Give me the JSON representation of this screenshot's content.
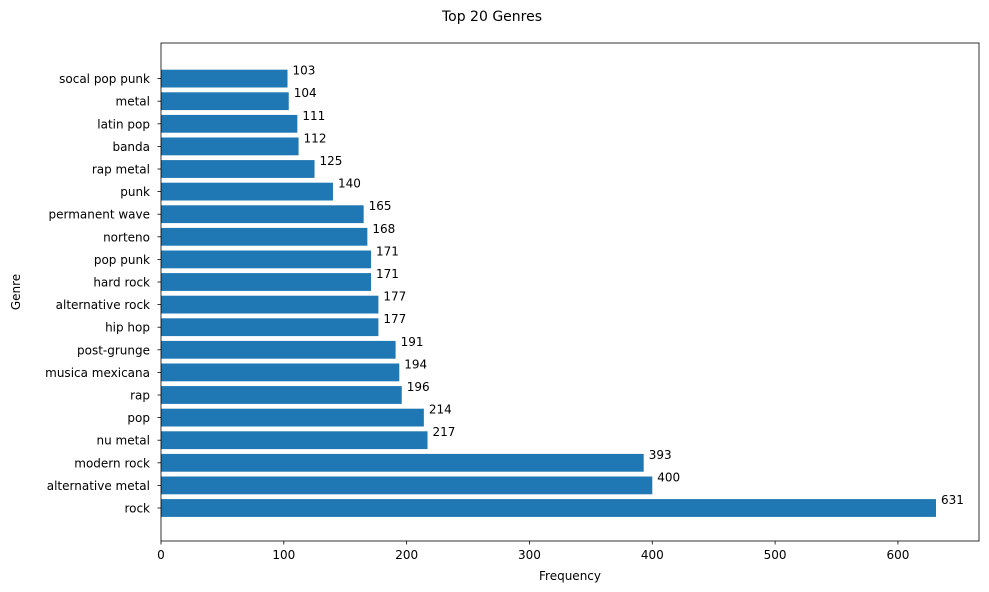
{
  "chart_data": {
    "type": "bar",
    "orientation": "horizontal",
    "title": "Top 20 Genres",
    "xlabel": "Frequency",
    "ylabel": "Genre",
    "xlim": [
      0,
      666
    ],
    "xticks": [
      0,
      100,
      200,
      300,
      400,
      500,
      600
    ],
    "grid": false,
    "bar_color": "#1f77b4",
    "categories": [
      "rock",
      "alternative metal",
      "modern rock",
      "nu metal",
      "pop",
      "rap",
      "musica mexicana",
      "post-grunge",
      "hip hop",
      "alternative rock",
      "hard rock",
      "pop punk",
      "norteno",
      "permanent wave",
      "punk",
      "rap metal",
      "banda",
      "latin pop",
      "metal",
      "socal pop punk"
    ],
    "values": [
      631,
      400,
      393,
      217,
      214,
      196,
      194,
      191,
      177,
      177,
      171,
      171,
      168,
      165,
      140,
      125,
      112,
      111,
      104,
      103
    ]
  }
}
